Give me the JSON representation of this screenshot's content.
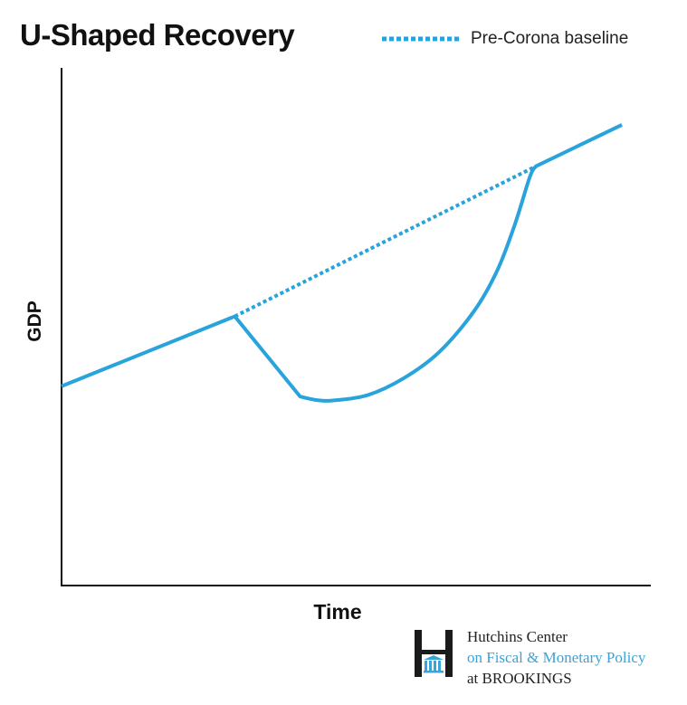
{
  "chart_data": {
    "type": "line",
    "title": "U-Shaped Recovery",
    "xlabel": "Time",
    "ylabel": "GDP",
    "xlim": [
      0,
      100
    ],
    "ylim": [
      0,
      100
    ],
    "grid": false,
    "legend_placement": "top-right",
    "series": [
      {
        "name": "",
        "style": "solid",
        "color": "#29a3db",
        "x": [
          0,
          29.4,
          40.5,
          43.5,
          46.5,
          52,
          58,
          64,
          70,
          74,
          77,
          79.5,
          80.5,
          95.1
        ],
        "y": [
          38.5,
          52,
          36.5,
          35.8,
          35.8,
          36.8,
          40,
          45,
          53,
          61,
          70,
          79,
          81,
          89
        ]
      },
      {
        "name": "Pre-Corona baseline",
        "style": "dotted",
        "color": "#29a3db",
        "x": [
          29.4,
          80.5
        ],
        "y": [
          52,
          81
        ]
      }
    ]
  },
  "logo": {
    "line1": "Hutchins Center",
    "line2": "on Fiscal & Monetary Policy",
    "line3": "at BROOKINGS"
  }
}
